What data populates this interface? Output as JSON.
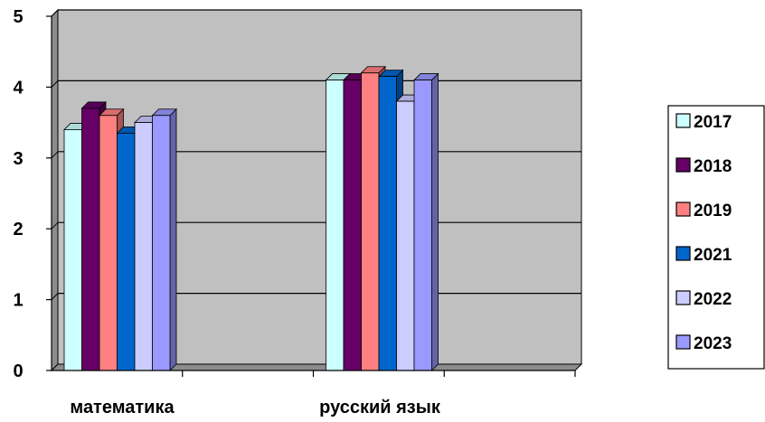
{
  "chart_data": {
    "type": "bar",
    "title": "",
    "xlabel": "",
    "ylabel": "",
    "categories": [
      "математика",
      "русский язык"
    ],
    "ylim": [
      0,
      5
    ],
    "yticks": [
      "0",
      "1",
      "2",
      "3",
      "4",
      "5"
    ],
    "grid": true,
    "legend_position": "right",
    "series": [
      {
        "name": "2017",
        "color": "#ccffff",
        "values": [
          3.4,
          4.1
        ]
      },
      {
        "name": "2018",
        "color": "#660066",
        "values": [
          3.7,
          4.1
        ]
      },
      {
        "name": "2019",
        "color": "#ff8080",
        "values": [
          3.6,
          4.2
        ]
      },
      {
        "name": "2021",
        "color": "#0066cc",
        "values": [
          3.35,
          4.15
        ]
      },
      {
        "name": "2022",
        "color": "#ccccff",
        "values": [
          3.5,
          3.8
        ]
      },
      {
        "name": "2023",
        "color": "#9999ff",
        "values": [
          3.6,
          4.1
        ]
      }
    ]
  }
}
